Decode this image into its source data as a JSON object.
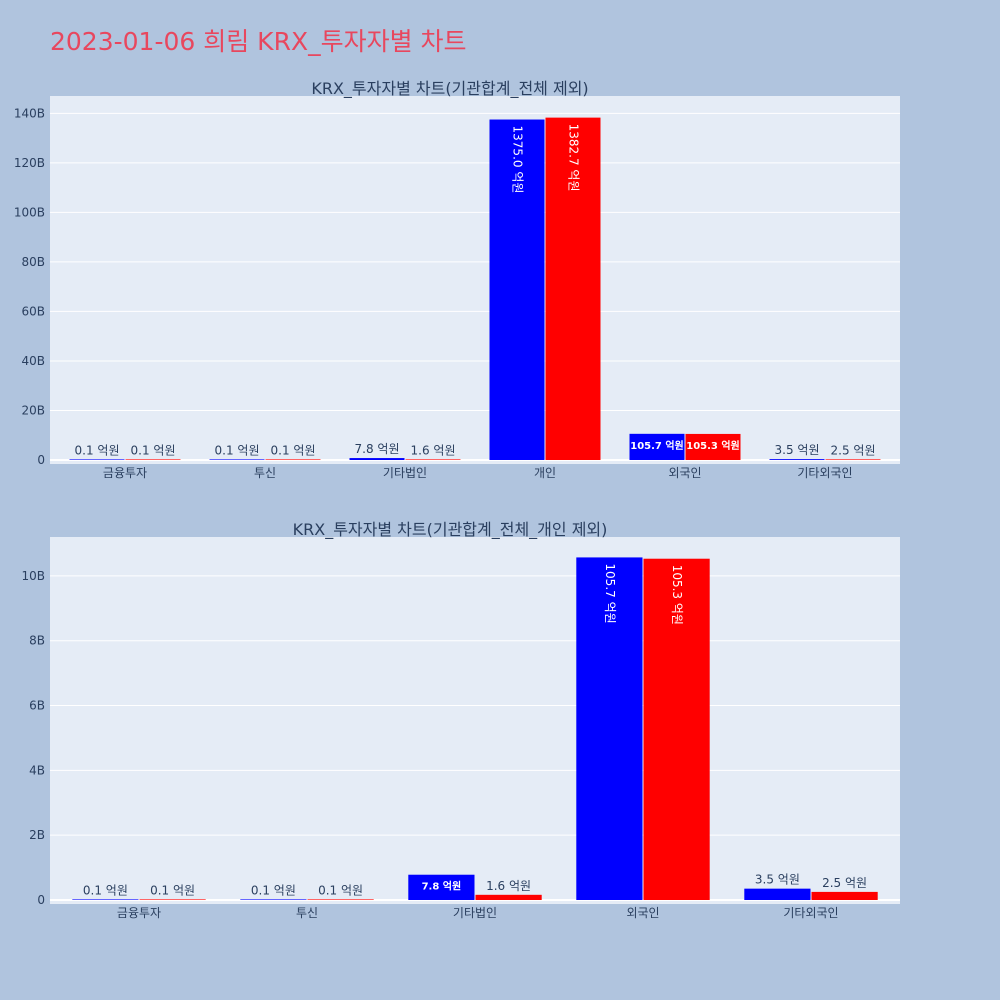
{
  "page": {
    "title": "2023-01-06 희림 KRX_투자자별 차트"
  },
  "colors": {
    "series_blue": "#0000ff",
    "series_red": "#ff0000",
    "plot_bg": "#e5ecf6",
    "page_bg": "#b0c4de",
    "title_color": "#e8475e",
    "text_color": "#2a3f5f"
  },
  "chart_data": [
    {
      "type": "bar",
      "title": "KRX_투자자별 차트(기관합계_전체 제외)",
      "categories": [
        "금융투자",
        "투신",
        "기타법인",
        "개인",
        "외국인",
        "기타외국인"
      ],
      "ylim": [
        0,
        147
      ],
      "yticks": [
        0,
        20,
        40,
        60,
        80,
        100,
        120,
        140
      ],
      "ytick_labels": [
        "0",
        "20B",
        "40B",
        "60B",
        "80B",
        "100B",
        "120B",
        "140B"
      ],
      "grid": true,
      "series": [
        {
          "color": "#0000ff",
          "values": [
            0.01,
            0.01,
            0.78,
            137.5,
            10.57,
            0.35
          ],
          "labels": [
            "0.1 억원",
            "0.1 억원",
            "7.8 억원",
            "1375.0 억원",
            "105.7 억원",
            "3.5 억원"
          ]
        },
        {
          "color": "#ff0000",
          "values": [
            0.01,
            0.01,
            0.16,
            138.27,
            10.53,
            0.25
          ],
          "labels": [
            "0.1 억원",
            "0.1 억원",
            "1.6 억원",
            "1382.7 억원",
            "105.3 억원",
            "2.5 억원"
          ]
        }
      ]
    },
    {
      "type": "bar",
      "title": "KRX_투자자별 차트(기관합계_전체_개인 제외)",
      "categories": [
        "금융투자",
        "투신",
        "기타법인",
        "외국인",
        "기타외국인"
      ],
      "ylim": [
        0,
        11.2
      ],
      "yticks": [
        0,
        2,
        4,
        6,
        8,
        10
      ],
      "ytick_labels": [
        "0",
        "2B",
        "4B",
        "6B",
        "8B",
        "10B"
      ],
      "grid": true,
      "series": [
        {
          "color": "#0000ff",
          "values": [
            0.01,
            0.01,
            0.78,
            10.57,
            0.35
          ],
          "labels": [
            "0.1 억원",
            "0.1 억원",
            "7.8 억원",
            "105.7 억원",
            "3.5 억원"
          ]
        },
        {
          "color": "#ff0000",
          "values": [
            0.01,
            0.01,
            0.16,
            10.53,
            0.25
          ],
          "labels": [
            "0.1 억원",
            "0.1 억원",
            "1.6 억원",
            "105.3 억원",
            "2.5 억원"
          ]
        }
      ]
    }
  ]
}
